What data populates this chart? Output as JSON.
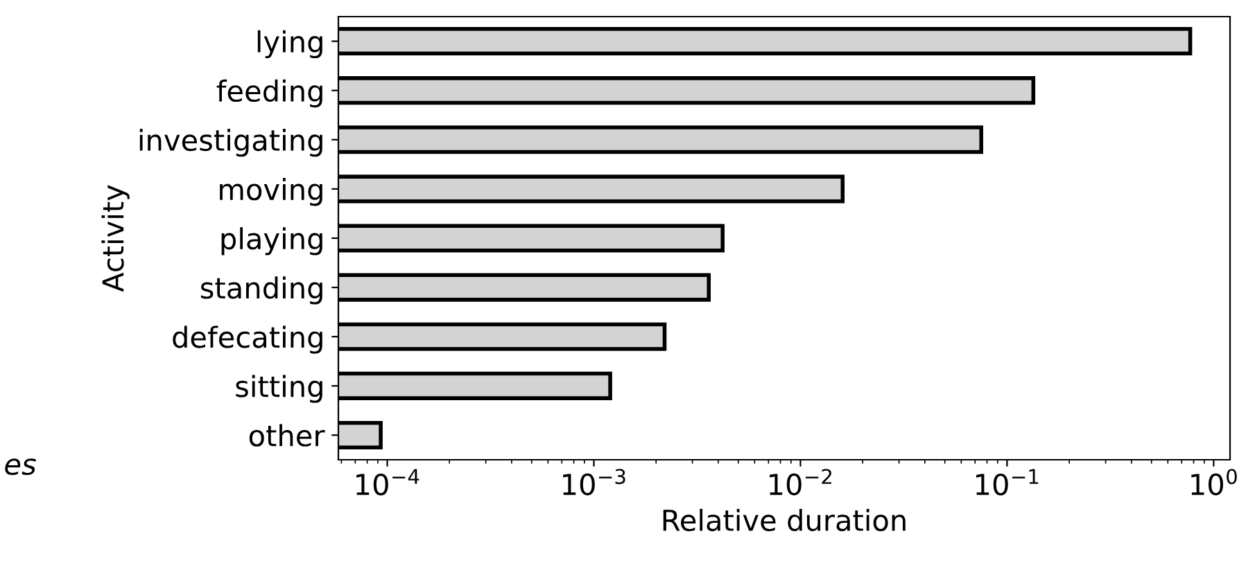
{
  "chart_data": {
    "type": "bar",
    "orientation": "horizontal",
    "log": "x",
    "xlabel": "Relative duration",
    "ylabel": "Activity",
    "categories": [
      "lying",
      "feeding",
      "investigating",
      "moving",
      "playing",
      "standing",
      "defecating",
      "sitting",
      "other"
    ],
    "values": [
      0.77,
      0.134,
      0.075,
      0.016,
      0.0042,
      0.0036,
      0.0022,
      0.0012,
      9.3e-05
    ],
    "color": "#d3d3d3",
    "xlim": [
      5.8e-05,
      1.2
    ],
    "xticks": [
      {
        "value": 0.0001,
        "label": "10$^{−4}$"
      },
      {
        "value": 0.001,
        "label": "10$^{−3}$"
      },
      {
        "value": 0.01,
        "label": "10$^{−2}$"
      },
      {
        "value": 0.1,
        "label": "10$^{−1}$"
      },
      {
        "value": 1,
        "label": "10$^{0}$"
      }
    ],
    "annotations": [
      "es"
    ]
  }
}
